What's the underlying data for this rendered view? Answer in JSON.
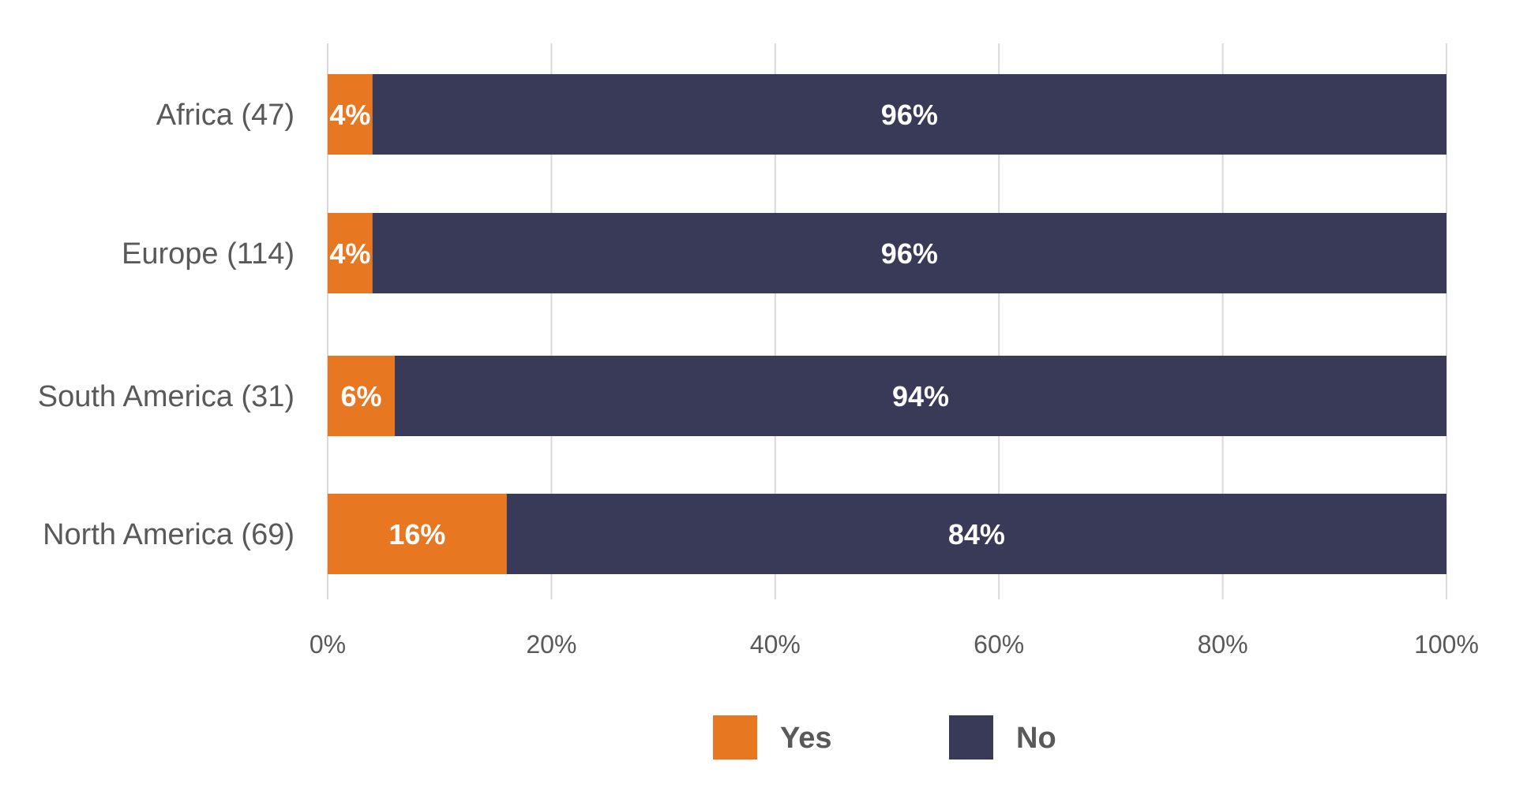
{
  "chart_data": {
    "type": "bar",
    "orientation": "horizontal",
    "stacked": true,
    "categories": [
      "Africa (47)",
      "Europe (114)",
      "South America (31)",
      "North America (69)"
    ],
    "series": [
      {
        "name": "Yes",
        "color": "#E87722",
        "values": [
          4,
          4,
          6,
          16
        ],
        "labels": [
          "4%",
          "4%",
          "6%",
          "16%"
        ]
      },
      {
        "name": "No",
        "color": "#383A58",
        "values": [
          96,
          96,
          94,
          84
        ],
        "labels": [
          "96%",
          "96%",
          "94%",
          "84%"
        ]
      }
    ],
    "xlim": [
      0,
      100
    ],
    "xticks": [
      "0%",
      "20%",
      "40%",
      "60%",
      "80%",
      "100%"
    ],
    "grid": true,
    "legend_position": "bottom",
    "title": "",
    "xlabel": "",
    "ylabel": ""
  }
}
